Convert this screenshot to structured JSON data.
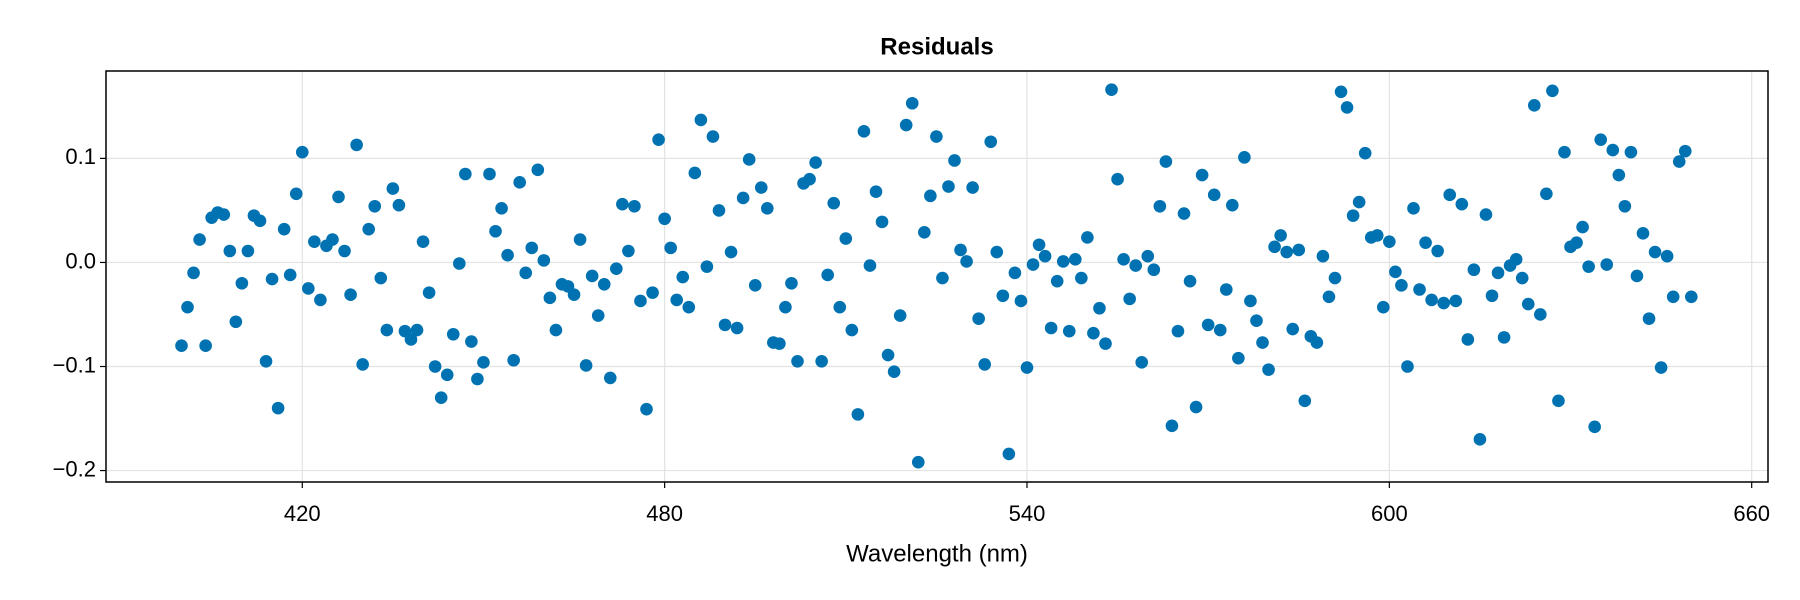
{
  "chart_data": {
    "type": "scatter",
    "title": "Residuals",
    "x_label": "Wavelength (nm)",
    "color": "#0072b2",
    "grid": true,
    "xlim": [
      387.5,
      662.7
    ],
    "ylim": [
      -0.211,
      0.184
    ],
    "xticks": [
      420,
      480,
      540,
      600,
      660
    ],
    "yticks": [
      {
        "value": -0.2,
        "label": "−0.2"
      },
      {
        "value": -0.1,
        "label": "−0.1"
      },
      {
        "value": 0,
        "label": "0.0"
      },
      0.1
    ],
    "x": [
      400,
      401,
      402,
      403,
      404,
      405,
      406,
      407,
      408,
      409,
      410,
      411,
      412,
      413,
      414,
      415,
      416,
      417,
      418,
      419,
      420,
      421,
      422,
      423,
      424,
      425,
      426,
      427,
      428,
      429,
      430,
      431,
      432,
      433,
      434,
      435,
      436,
      437,
      438,
      439,
      440,
      441,
      442,
      443,
      444,
      445,
      446,
      447,
      448,
      449,
      450,
      451,
      452,
      453,
      454,
      455,
      456,
      457,
      458,
      459,
      460,
      461,
      462,
      463,
      464,
      465,
      466,
      467,
      468,
      469,
      470,
      471,
      472,
      473,
      474,
      475,
      476,
      477,
      478,
      479,
      480,
      481,
      482,
      483,
      484,
      485,
      486,
      487,
      488,
      489,
      490,
      491,
      492,
      493,
      494,
      495,
      496,
      497,
      498,
      499,
      500,
      501,
      502,
      503,
      504,
      505,
      506,
      507,
      508,
      509,
      510,
      511,
      512,
      513,
      514,
      515,
      516,
      517,
      518,
      519,
      520,
      521,
      522,
      523,
      524,
      525,
      526,
      527,
      528,
      529,
      530,
      531,
      532,
      533,
      534,
      535,
      536,
      537,
      538,
      539,
      540,
      541,
      542,
      543,
      544,
      545,
      546,
      547,
      548,
      549,
      550,
      551,
      552,
      553,
      554,
      555,
      556,
      557,
      558,
      559,
      560,
      561,
      562,
      563,
      564,
      565,
      566,
      567,
      568,
      569,
      570,
      571,
      572,
      573,
      574,
      575,
      576,
      577,
      578,
      579,
      580,
      581,
      582,
      583,
      584,
      585,
      586,
      587,
      588,
      589,
      590,
      591,
      592,
      593,
      594,
      595,
      596,
      597,
      598,
      599,
      600,
      601,
      602,
      603,
      604,
      605,
      606,
      607,
      608,
      609,
      610,
      611,
      612,
      613,
      614,
      615,
      616,
      617,
      618,
      619,
      620,
      621,
      622,
      623,
      624,
      625,
      626,
      627,
      628,
      629,
      630,
      631,
      632,
      633,
      634,
      635,
      636,
      637,
      638,
      639,
      640,
      641,
      642,
      643,
      644,
      645,
      646,
      647,
      648,
      649,
      650
    ],
    "values": [
      -0.08,
      -0.043,
      -0.01,
      0.022,
      -0.08,
      0.043,
      0.048,
      0.046,
      0.011,
      -0.057,
      -0.02,
      0.011,
      0.045,
      0.04,
      -0.095,
      -0.016,
      -0.14,
      0.032,
      -0.012,
      0.066,
      0.106,
      -0.025,
      0.02,
      -0.036,
      0.016,
      0.022,
      0.063,
      0.011,
      -0.031,
      0.113,
      -0.098,
      0.032,
      0.054,
      -0.015,
      -0.065,
      0.071,
      0.055,
      -0.066,
      -0.074,
      -0.065,
      0.02,
      -0.029,
      -0.1,
      -0.13,
      -0.108,
      -0.069,
      -0.001,
      0.085,
      -0.076,
      -0.112,
      -0.096,
      0.085,
      0.03,
      0.052,
      0.007,
      -0.094,
      0.077,
      -0.01,
      0.014,
      0.089,
      0.002,
      -0.034,
      -0.065,
      -0.021,
      -0.023,
      -0.031,
      0.022,
      -0.099,
      -0.013,
      -0.051,
      -0.021,
      -0.111,
      -0.006,
      0.056,
      0.011,
      0.054,
      -0.037,
      -0.141,
      -0.029,
      0.118,
      0.042,
      0.014,
      -0.036,
      -0.014,
      -0.043,
      0.086,
      0.137,
      -0.004,
      0.121,
      0.05,
      -0.06,
      0.01,
      -0.063,
      0.062,
      0.099,
      -0.022,
      0.072,
      0.052,
      -0.077,
      -0.078,
      -0.043,
      -0.02,
      -0.095,
      0.076,
      0.08,
      0.096,
      -0.095,
      -0.012,
      0.057,
      -0.043,
      0.023,
      -0.065,
      -0.146,
      0.126,
      -0.003,
      0.068,
      0.039,
      -0.089,
      -0.105,
      -0.051,
      0.132,
      0.153,
      -0.192,
      0.029,
      0.064,
      0.121,
      -0.015,
      0.073,
      0.098,
      0.012,
      0.001,
      0.072,
      -0.054,
      -0.098,
      0.116,
      0.01,
      -0.032,
      -0.184,
      -0.01,
      -0.037,
      -0.101,
      -0.002,
      0.017,
      0.006,
      -0.063,
      -0.018,
      0.001,
      -0.066,
      0.003,
      -0.015,
      0.024,
      -0.068,
      -0.044,
      -0.078,
      0.166,
      0.08,
      0.003,
      -0.035,
      -0.003,
      -0.096,
      0.006,
      -0.007,
      0.054,
      0.097,
      -0.157,
      -0.066,
      0.047,
      -0.018,
      -0.139,
      0.084,
      -0.06,
      0.065,
      -0.065,
      -0.026,
      0.055,
      -0.092,
      0.101,
      -0.037,
      -0.056,
      -0.077,
      -0.103,
      0.015,
      0.026,
      0.01,
      -0.064,
      0.012,
      -0.133,
      -0.071,
      -0.077,
      0.006,
      -0.033,
      -0.015,
      0.164,
      0.149,
      0.045,
      0.058,
      0.105,
      0.024,
      0.026,
      -0.043,
      0.02,
      -0.009,
      -0.022,
      -0.1,
      0.052,
      -0.026,
      0.019,
      -0.036,
      0.011,
      -0.039,
      0.065,
      -0.037,
      0.056,
      -0.074,
      -0.007,
      -0.17,
      0.046,
      -0.032,
      -0.01,
      -0.072,
      -0.003,
      0.003,
      -0.015,
      -0.04,
      0.151,
      -0.05,
      0.066,
      0.165,
      -0.133,
      0.106,
      0.015,
      0.019,
      0.034,
      -0.004,
      -0.158,
      0.118,
      -0.002,
      0.108,
      0.084,
      0.054,
      0.106,
      -0.013,
      0.028,
      -0.054,
      0.01,
      -0.101,
      0.006,
      -0.033,
      0.097,
      0.107,
      -0.033
    ]
  }
}
